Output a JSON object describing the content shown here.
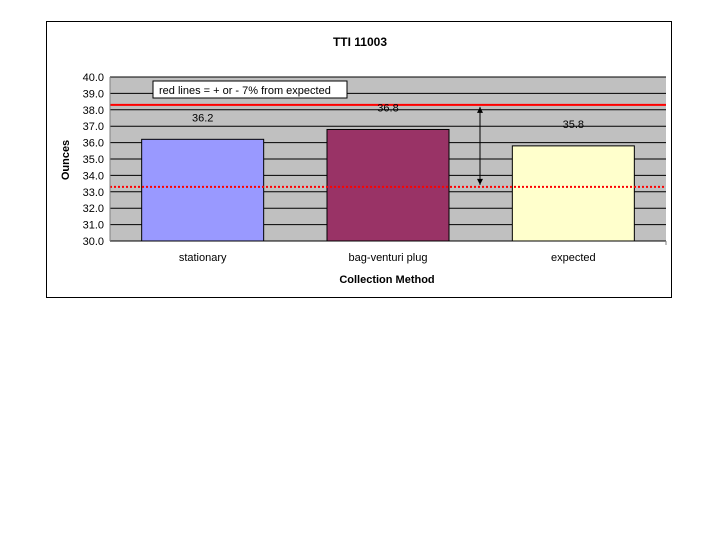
{
  "chart_data": {
    "type": "bar",
    "title": "TTI 11003",
    "xlabel": "Collection Method",
    "ylabel": "Ounces",
    "categories": [
      "stationary",
      "bag-venturi plug",
      "expected"
    ],
    "values": [
      36.2,
      36.8,
      35.8
    ],
    "data_labels": [
      "36.2",
      "36.8",
      "35.8"
    ],
    "bar_colors": [
      "#9999ff",
      "#993366",
      "#ffffcc"
    ],
    "ylim": [
      30.0,
      40.0
    ],
    "yticks": [
      "30.0",
      "31.0",
      "32.0",
      "33.0",
      "34.0",
      "35.0",
      "36.0",
      "37.0",
      "38.0",
      "39.0",
      "40.0"
    ],
    "grid": "horizontal",
    "plot_background": "#c0c0c0",
    "reference_lines": [
      {
        "value": 38.3,
        "color": "#ff0000",
        "style": "solid"
      },
      {
        "value": 33.3,
        "color": "#ff0000",
        "style": "dotted"
      }
    ],
    "annotation": "red lines = + or - 7% from expected"
  }
}
